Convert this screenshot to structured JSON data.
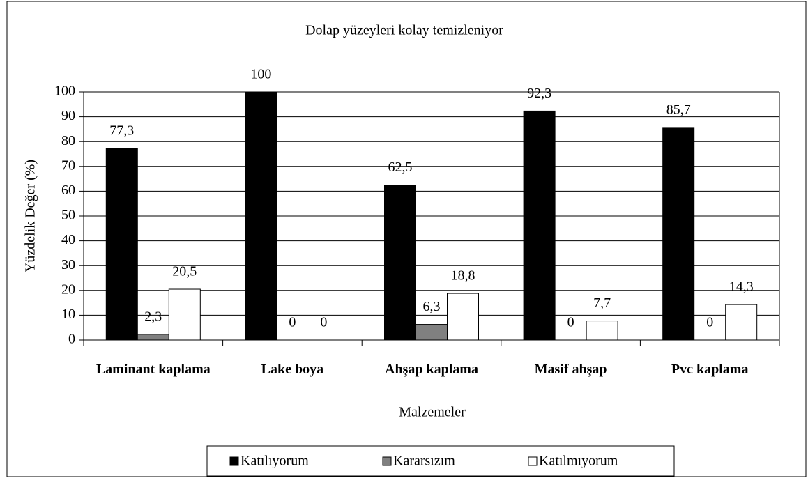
{
  "chart_data": {
    "type": "bar",
    "title": "Dolap yüzeyleri kolay temizleniyor",
    "x_label": "Malzemeler",
    "y_label": "Yüzdelik Değer (%)",
    "categories": [
      "Laminant kaplama",
      "Lake boya",
      "Ahşap kaplama",
      "Masif ahşap",
      "Pvc kaplama"
    ],
    "series": [
      {
        "name": "Katılıyorum",
        "color": "#000000",
        "values": [
          77.3,
          100,
          62.5,
          92.3,
          85.7
        ],
        "value_labels": [
          "77,3",
          "100",
          "62,5",
          "92,3",
          "85,7"
        ]
      },
      {
        "name": "Kararsızım",
        "color": "#808080",
        "values": [
          2.3,
          0,
          6.3,
          0,
          0
        ],
        "value_labels": [
          "2,3",
          "0",
          "6,3",
          "0",
          "0"
        ]
      },
      {
        "name": "Katılmıyorum",
        "color": "#ffffff",
        "values": [
          20.5,
          0,
          18.8,
          7.7,
          14.3
        ],
        "value_labels": [
          "20,5",
          "0",
          "18,8",
          "7,7",
          "14,3"
        ]
      }
    ],
    "ylim": [
      0,
      100
    ],
    "yticks": [
      0,
      10,
      20,
      30,
      40,
      50,
      60,
      70,
      80,
      90,
      100
    ],
    "grid": true,
    "legend": "bottom"
  }
}
